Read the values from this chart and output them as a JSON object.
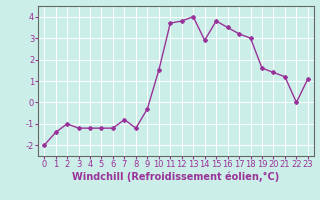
{
  "x": [
    0,
    1,
    2,
    3,
    4,
    5,
    6,
    7,
    8,
    9,
    10,
    11,
    12,
    13,
    14,
    15,
    16,
    17,
    18,
    19,
    20,
    21,
    22,
    23
  ],
  "y": [
    -2.0,
    -1.4,
    -1.0,
    -1.2,
    -1.2,
    -1.2,
    -1.2,
    -0.8,
    -1.2,
    -0.3,
    1.5,
    3.7,
    3.8,
    4.0,
    2.9,
    3.8,
    3.5,
    3.2,
    3.0,
    1.6,
    1.4,
    1.2,
    0.0,
    1.1
  ],
  "line_color": "#993399",
  "marker": "D",
  "marker_size": 2,
  "bg_color": "#cceee8",
  "grid_color": "#aaddcc",
  "xlabel": "Windchill (Refroidissement éolien,°C)",
  "xlabel_fontsize": 7,
  "tick_fontsize": 6,
  "ylim": [
    -2.5,
    4.5
  ],
  "xlim": [
    -0.5,
    23.5
  ],
  "yticks": [
    -2,
    -1,
    0,
    1,
    2,
    3,
    4
  ],
  "xticks": [
    0,
    1,
    2,
    3,
    4,
    5,
    6,
    7,
    8,
    9,
    10,
    11,
    12,
    13,
    14,
    15,
    16,
    17,
    18,
    19,
    20,
    21,
    22,
    23
  ],
  "spine_color": "#666666",
  "linewidth": 1.0
}
